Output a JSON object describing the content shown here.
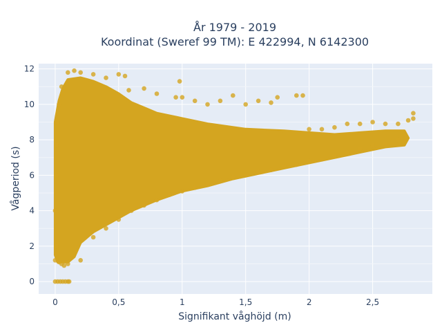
{
  "chart_data": {
    "type": "scatter",
    "title_lines": [
      "År 1979 - 2019",
      "Koordinat (Sweref 99 TM): E 422994, N 6142300"
    ],
    "xlabel": "Signifikant våghöjd (m)",
    "ylabel": "Vågperiod (s)",
    "xlim": [
      -0.13,
      2.97
    ],
    "ylim": [
      -0.7,
      12.3
    ],
    "x_ticks": [
      0,
      0.5,
      1,
      1.5,
      2,
      2.5
    ],
    "x_tick_labels": [
      "0",
      "0,5",
      "1",
      "1,5",
      "2",
      "2,5"
    ],
    "y_ticks": [
      0,
      2,
      4,
      6,
      8,
      10,
      12
    ],
    "y_tick_labels": [
      "0",
      "2",
      "4",
      "6",
      "8",
      "10",
      "12"
    ],
    "grid": true,
    "marker_color": "#d4a520",
    "background_color": "#e5ecf6",
    "points": [
      [
        0,
        0
      ],
      [
        0.02,
        0
      ],
      [
        0.04,
        0
      ],
      [
        0.06,
        0
      ],
      [
        0.08,
        0
      ],
      [
        0.1,
        0
      ],
      [
        0.11,
        0
      ],
      [
        0.0,
        1.2
      ],
      [
        0.01,
        2.0
      ],
      [
        0.0,
        4.0
      ],
      [
        0.01,
        6.0
      ],
      [
        0.01,
        7.7
      ],
      [
        0.02,
        9.0
      ],
      [
        0.03,
        10.0
      ],
      [
        0.05,
        11.0
      ],
      [
        0.1,
        11.8
      ],
      [
        0.15,
        11.9
      ],
      [
        0.2,
        11.8
      ],
      [
        0.3,
        11.7
      ],
      [
        0.4,
        11.5
      ],
      [
        0.5,
        11.7
      ],
      [
        0.55,
        11.6
      ],
      [
        0.58,
        10.8
      ],
      [
        0.7,
        10.9
      ],
      [
        0.8,
        10.6
      ],
      [
        0.95,
        10.4
      ],
      [
        0.98,
        11.3
      ],
      [
        1.0,
        10.4
      ],
      [
        1.1,
        10.2
      ],
      [
        1.2,
        10.0
      ],
      [
        1.3,
        10.2
      ],
      [
        1.4,
        10.5
      ],
      [
        1.5,
        10.0
      ],
      [
        1.6,
        10.2
      ],
      [
        1.7,
        10.1
      ],
      [
        1.75,
        10.4
      ],
      [
        1.9,
        10.5
      ],
      [
        1.95,
        10.5
      ],
      [
        2.0,
        8.6
      ],
      [
        2.1,
        8.6
      ],
      [
        2.2,
        8.7
      ],
      [
        2.3,
        8.9
      ],
      [
        2.4,
        8.9
      ],
      [
        2.5,
        9.0
      ],
      [
        2.6,
        8.9
      ],
      [
        2.7,
        8.9
      ],
      [
        2.78,
        9.1
      ],
      [
        2.82,
        9.5
      ],
      [
        2.82,
        9.2
      ],
      [
        0.05,
        1.0
      ],
      [
        0.1,
        1.0
      ],
      [
        0.2,
        1.2
      ],
      [
        0.3,
        2.5
      ],
      [
        0.4,
        3.0
      ],
      [
        0.5,
        3.5
      ],
      [
        0.6,
        4.0
      ],
      [
        0.7,
        4.3
      ],
      [
        0.8,
        4.6
      ],
      [
        0.9,
        4.9
      ],
      [
        1.0,
        5.1
      ],
      [
        1.1,
        5.3
      ],
      [
        1.2,
        5.5
      ],
      [
        1.3,
        5.7
      ],
      [
        1.4,
        5.9
      ],
      [
        1.5,
        6.0
      ],
      [
        1.6,
        6.2
      ],
      [
        1.7,
        6.3
      ],
      [
        1.8,
        6.5
      ],
      [
        1.9,
        6.6
      ],
      [
        2.0,
        6.8
      ],
      [
        2.1,
        6.9
      ],
      [
        2.2,
        7.1
      ],
      [
        2.3,
        7.3
      ],
      [
        2.4,
        7.5
      ],
      [
        2.5,
        7.7
      ],
      [
        2.6,
        7.8
      ],
      [
        2.7,
        8.0
      ],
      [
        0.03,
        1.1
      ],
      [
        0.07,
        0.9
      ]
    ]
  }
}
